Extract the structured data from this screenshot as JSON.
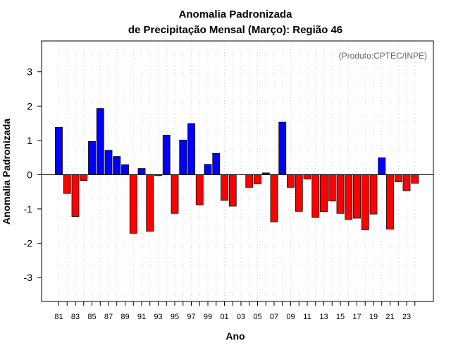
{
  "chart_data": {
    "type": "bar",
    "title": "Anomalia Padronizada",
    "subtitle": "de Precipitação Mensal (Março): Região 46",
    "xlabel": "Ano",
    "ylabel": "Anomalia Padronizada",
    "credit": "(Produto:CPTEC/INPE)",
    "ylim": [
      -3.7,
      3.9
    ],
    "yticks": [
      -3,
      -2,
      -1,
      0,
      1,
      2,
      3
    ],
    "ytick_labels": [
      "-3",
      "-2",
      "-1",
      "0",
      "1",
      "2",
      "3"
    ],
    "grid": "vertical dotted lines",
    "positive_color": "#0000ff",
    "negative_color": "#ff0000",
    "categories": [
      "81",
      "82",
      "83",
      "84",
      "85",
      "86",
      "87",
      "88",
      "89",
      "90",
      "91",
      "92",
      "93",
      "94",
      "95",
      "96",
      "97",
      "98",
      "99",
      "00",
      "01",
      "02",
      "03",
      "04",
      "05",
      "06",
      "07",
      "08",
      "09",
      "10",
      "11",
      "12",
      "13",
      "14",
      "15",
      "16",
      "17",
      "18",
      "19",
      "20",
      "21",
      "22",
      "23",
      "24"
    ],
    "xtick_labels_shown": [
      "81",
      "83",
      "85",
      "87",
      "89",
      "91",
      "93",
      "95",
      "97",
      "99",
      "01",
      "03",
      "05",
      "07",
      "09",
      "11",
      "13",
      "15",
      "17",
      "19",
      "21",
      "23"
    ],
    "values": [
      1.38,
      -0.55,
      -1.22,
      -0.17,
      0.97,
      1.93,
      0.71,
      0.53,
      0.29,
      -1.71,
      0.18,
      -1.65,
      -0.03,
      1.15,
      -1.13,
      1.01,
      1.49,
      -0.88,
      0.3,
      0.62,
      -0.75,
      -0.92,
      0.0,
      -0.37,
      -0.27,
      0.05,
      -1.38,
      1.53,
      -0.37,
      -1.07,
      -0.13,
      -1.25,
      -1.08,
      -0.77,
      -1.13,
      -1.31,
      -1.27,
      -1.61,
      -1.15,
      0.49,
      -1.59,
      -0.21,
      -0.47,
      -0.25
    ]
  }
}
